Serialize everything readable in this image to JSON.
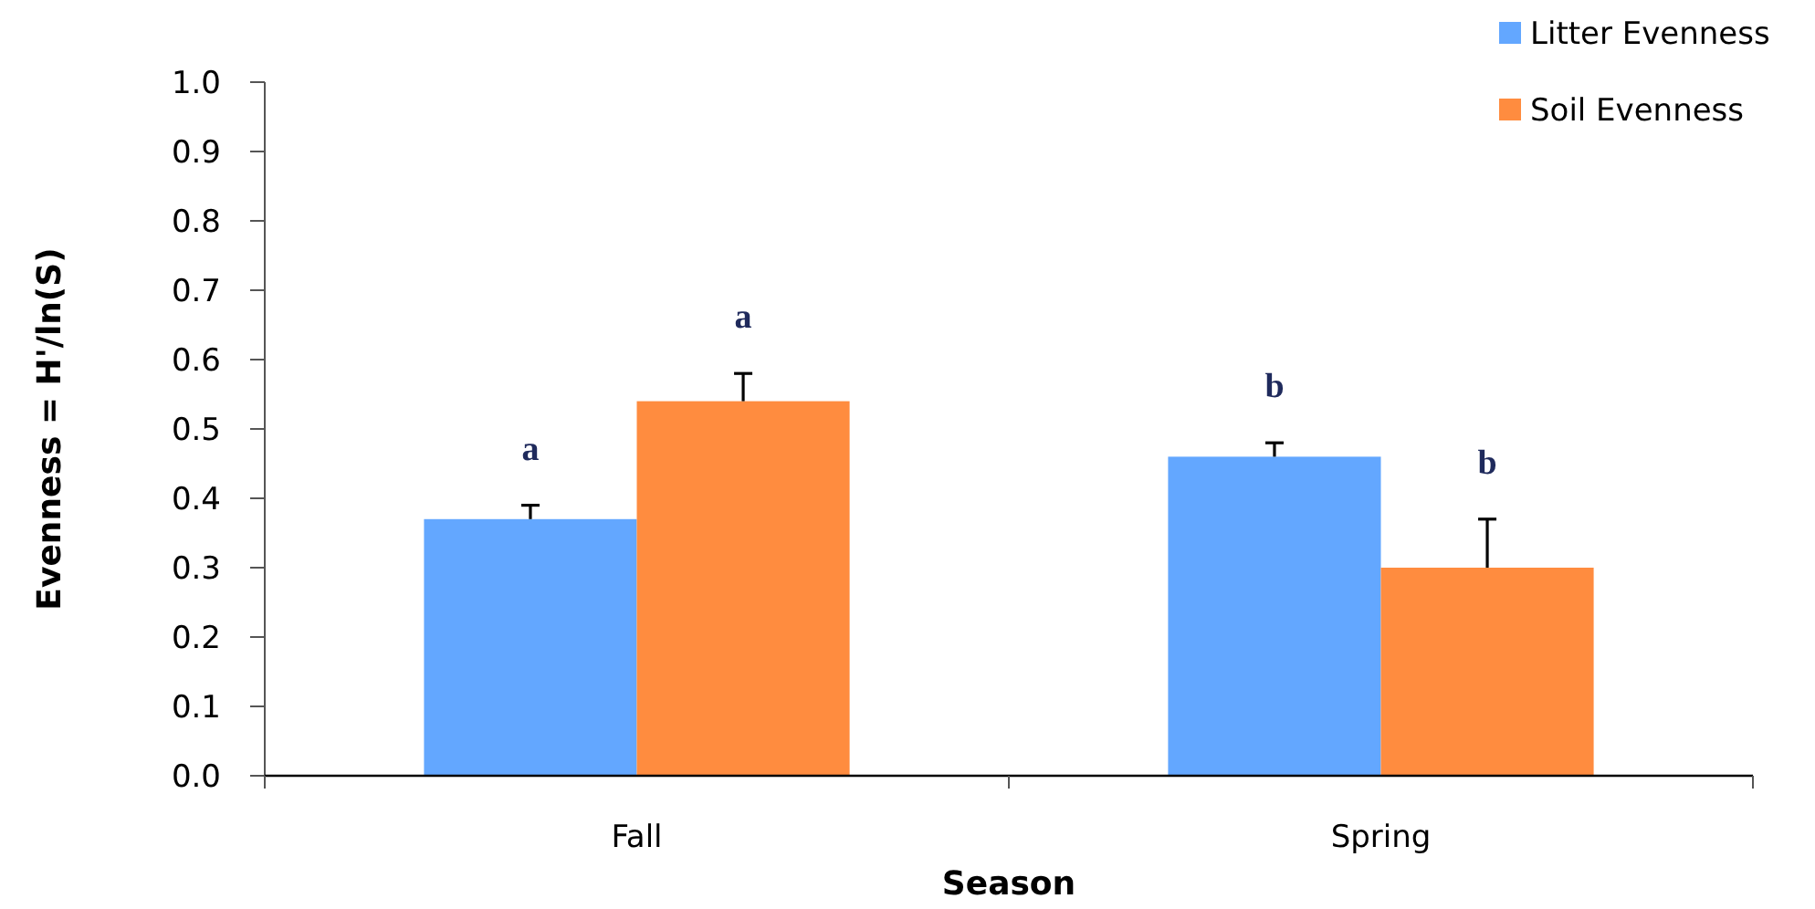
{
  "chart_data": {
    "type": "bar",
    "xlabel": "Season",
    "ylabel": "Evenness = H'/ln(S)",
    "categories": [
      "Fall",
      "Spring"
    ],
    "series": [
      {
        "name": "Litter Evenness",
        "color": "#63a7ff",
        "values": [
          0.37,
          0.46
        ],
        "errors": [
          [
            0.37,
            0.39
          ],
          [
            0.46,
            0.48
          ]
        ],
        "value_labels": [
          "a",
          "b"
        ]
      },
      {
        "name": "Soil Evenness",
        "color": "#ff8c3f",
        "values": [
          0.54,
          0.3
        ],
        "errors": [
          [
            0.54,
            0.58
          ],
          [
            0.3,
            0.37
          ]
        ],
        "value_labels": [
          "a",
          "b"
        ]
      }
    ],
    "ylim": [
      0,
      1
    ],
    "yticks": [
      {
        "value": 0,
        "label": "0.0"
      },
      0.1,
      0.2,
      0.3,
      0.4,
      0.5,
      0.6,
      0.7,
      0.8,
      0.9,
      {
        "value": 1,
        "label": "1.0"
      }
    ],
    "legend": "top right"
  }
}
